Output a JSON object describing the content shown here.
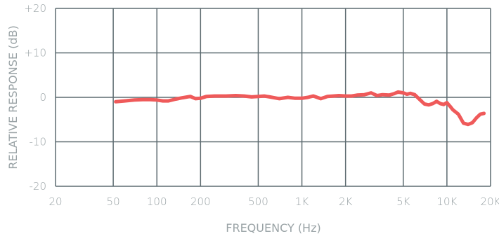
{
  "chart_data": {
    "type": "line",
    "xlabel": "FREQUENCY (Hz)",
    "ylabel": "RELATIVE RESPONSE (dB)",
    "xscale": "log",
    "xlim": [
      20,
      20000
    ],
    "ylim": [
      -20,
      20
    ],
    "grid": true,
    "colors": {
      "line": "#ef5a5a",
      "grid": "#5d6b70",
      "text": "#9aa3a6"
    },
    "x_ticks": [
      {
        "value": 20,
        "label": "20"
      },
      {
        "value": 50,
        "label": "50"
      },
      {
        "value": 100,
        "label": "100"
      },
      {
        "value": 200,
        "label": "200"
      },
      {
        "value": 500,
        "label": "500"
      },
      {
        "value": 1000,
        "label": "1K"
      },
      {
        "value": 2000,
        "label": "2K"
      },
      {
        "value": 5000,
        "label": "5K"
      },
      {
        "value": 10000,
        "label": "10K"
      },
      {
        "value": 20000,
        "label": "20K"
      }
    ],
    "y_ticks": [
      {
        "value": 20,
        "label": "+20"
      },
      {
        "value": 10,
        "label": "+10"
      },
      {
        "value": 0,
        "label": "0"
      },
      {
        "value": -10,
        "label": "-10"
      },
      {
        "value": -20,
        "label": "-20"
      }
    ],
    "series": [
      {
        "x": [
          52,
          60,
          70,
          80,
          90,
          100,
          110,
          120,
          135,
          150,
          170,
          185,
          200,
          220,
          250,
          300,
          350,
          400,
          450,
          500,
          550,
          600,
          700,
          800,
          900,
          1000,
          1100,
          1200,
          1350,
          1500,
          1650,
          1800,
          2000,
          2200,
          2400,
          2700,
          3000,
          3300,
          3600,
          4000,
          4300,
          4600,
          5000,
          5300,
          5600,
          6000,
          6500,
          7000,
          7500,
          8000,
          8500,
          9000,
          9500,
          10000,
          10500,
          11000,
          12000,
          13000,
          14000,
          15000,
          16000,
          17000,
          18000
        ],
        "y": [
          -1.0,
          -0.8,
          -0.6,
          -0.5,
          -0.5,
          -0.6,
          -0.8,
          -0.8,
          -0.4,
          -0.1,
          0.2,
          -0.3,
          -0.2,
          0.2,
          0.3,
          0.3,
          0.4,
          0.3,
          0.1,
          0.2,
          0.3,
          0.1,
          -0.3,
          0.0,
          -0.2,
          -0.2,
          0.0,
          0.3,
          -0.3,
          0.2,
          0.3,
          0.4,
          0.3,
          0.3,
          0.5,
          0.6,
          1.0,
          0.4,
          0.6,
          0.5,
          0.8,
          1.2,
          1.0,
          0.7,
          0.9,
          0.6,
          -0.5,
          -1.5,
          -1.7,
          -1.4,
          -0.9,
          -1.4,
          -1.6,
          -1.2,
          -2.0,
          -2.8,
          -3.8,
          -5.8,
          -6.1,
          -5.7,
          -4.6,
          -3.8,
          -3.6
        ]
      }
    ]
  }
}
